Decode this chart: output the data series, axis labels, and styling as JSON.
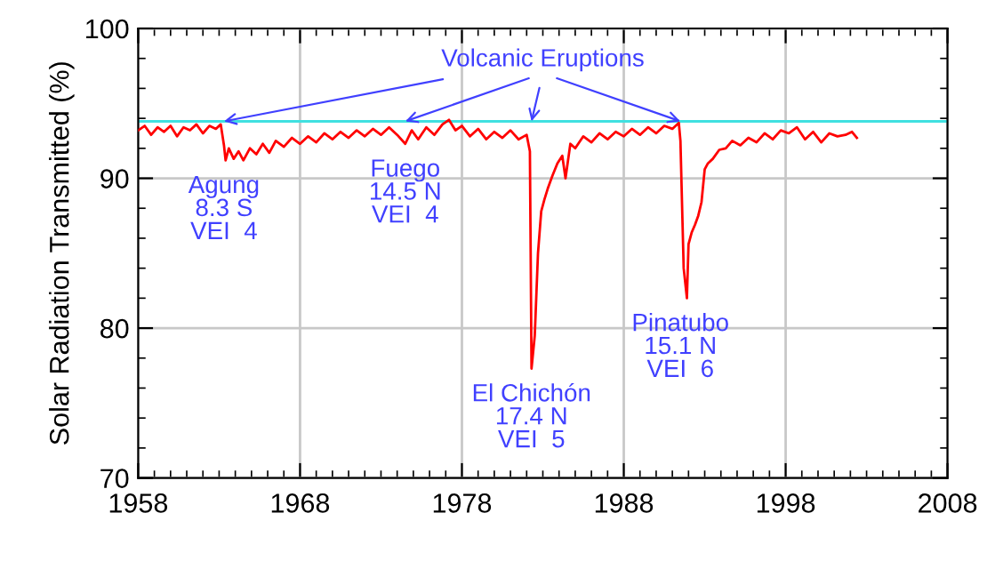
{
  "chart_data": {
    "type": "line",
    "ylabel": "Solar Radiation Transmitted (%)",
    "x": [
      1958.0,
      1958.4,
      1958.8,
      1959.2,
      1959.6,
      1960.0,
      1960.4,
      1960.8,
      1961.2,
      1961.6,
      1962.0,
      1962.4,
      1962.8,
      1963.1,
      1963.3,
      1963.4,
      1963.6,
      1963.9,
      1964.2,
      1964.5,
      1964.9,
      1965.3,
      1965.7,
      1966.1,
      1966.5,
      1967.0,
      1967.5,
      1968.0,
      1968.5,
      1969.0,
      1969.5,
      1970.0,
      1970.5,
      1971.0,
      1971.5,
      1972.0,
      1972.5,
      1973.0,
      1973.5,
      1974.0,
      1974.5,
      1974.9,
      1975.3,
      1975.8,
      1976.3,
      1976.8,
      1977.2,
      1977.6,
      1978.0,
      1978.5,
      1979.0,
      1979.5,
      1980.0,
      1980.5,
      1981.0,
      1981.5,
      1982.0,
      1982.2,
      1982.3,
      1982.5,
      1982.7,
      1982.9,
      1983.1,
      1983.3,
      1983.6,
      1983.9,
      1984.2,
      1984.4,
      1984.7,
      1985.0,
      1985.5,
      1986.0,
      1986.5,
      1987.0,
      1987.5,
      1988.0,
      1988.5,
      1989.0,
      1989.5,
      1990.0,
      1990.5,
      1991.0,
      1991.4,
      1991.5,
      1991.7,
      1991.9,
      1992.0,
      1992.2,
      1992.4,
      1992.6,
      1992.8,
      1993.0,
      1993.2,
      1993.5,
      1993.9,
      1994.3,
      1994.7,
      1995.2,
      1995.7,
      1996.2,
      1996.7,
      1997.2,
      1997.7,
      1998.2,
      1998.7,
      1999.2,
      1999.7,
      2000.2,
      2000.7,
      2001.2,
      2001.7,
      2002.1,
      2002.4
    ],
    "series": [
      {
        "color": "#ff0000",
        "values": [
          93.2,
          93.5,
          92.9,
          93.4,
          93.1,
          93.5,
          92.8,
          93.4,
          93.2,
          93.6,
          93.0,
          93.5,
          93.3,
          93.6,
          92.2,
          91.2,
          92.0,
          91.3,
          91.8,
          91.2,
          92.0,
          91.6,
          92.3,
          91.7,
          92.5,
          92.1,
          92.7,
          92.3,
          92.8,
          92.4,
          93.0,
          92.6,
          93.1,
          92.7,
          93.2,
          92.8,
          93.3,
          92.9,
          93.4,
          92.9,
          92.3,
          93.2,
          92.6,
          93.4,
          92.9,
          93.6,
          93.9,
          93.2,
          93.5,
          92.8,
          93.3,
          92.6,
          93.1,
          92.7,
          93.2,
          92.6,
          92.9,
          91.8,
          77.3,
          79.5,
          85.0,
          87.8,
          88.6,
          89.3,
          90.2,
          91.0,
          91.5,
          90.0,
          92.3,
          92.0,
          92.8,
          92.4,
          93.0,
          92.6,
          93.1,
          92.8,
          93.3,
          92.9,
          93.4,
          93.0,
          93.5,
          93.3,
          93.7,
          92.5,
          84.0,
          82.0,
          85.6,
          86.4,
          86.9,
          87.5,
          88.4,
          90.6,
          91.0,
          91.3,
          91.9,
          92.0,
          92.5,
          92.2,
          92.7,
          92.4,
          93.0,
          92.6,
          93.2,
          93.0,
          93.4,
          92.6,
          93.1,
          92.4,
          93.0,
          92.8,
          92.9,
          93.1,
          92.7
        ]
      }
    ],
    "xlim": [
      1958,
      2008
    ],
    "xticks": [
      1958,
      1968,
      1978,
      1988,
      1998,
      2008
    ],
    "ylim": [
      70,
      100
    ],
    "yticks": [
      70,
      80,
      90,
      100
    ],
    "grid": true,
    "marker": "none",
    "line_style": "solid",
    "ref_lines": [
      {
        "axis": "y",
        "value": 93.8,
        "color": "#40e0e0"
      }
    ],
    "annotations": [
      {
        "text": "Volcanic Eruptions",
        "x": 1963.3,
        "y": 93.8
      },
      {
        "text": "Agung\n8.3 S\nVEI  4",
        "x": 1963.3,
        "y": 91.2
      },
      {
        "text": "Fuego\n14.5 N\nVEI  4",
        "x": 1974.5,
        "y": 92.3
      },
      {
        "text": "El Chichón\n17.4 N\nVEI  5",
        "x": 1982.3,
        "y": 77.3
      },
      {
        "text": "Pinatubo\n15.1 N\nVEI  6",
        "x": 1991.5,
        "y": 82.0
      }
    ]
  }
}
